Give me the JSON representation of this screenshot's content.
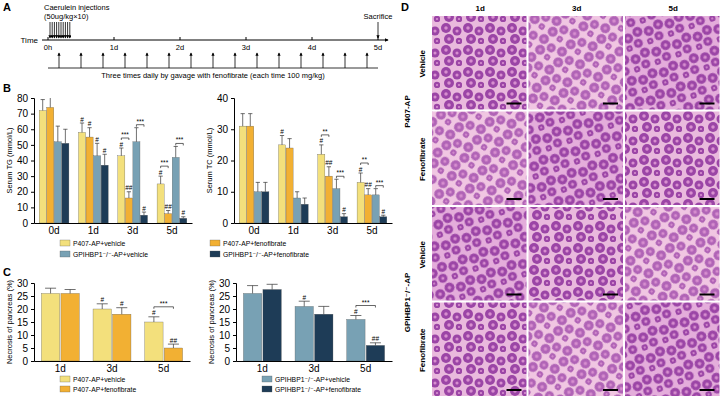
{
  "panel_labels": [
    "A",
    "B",
    "C",
    "D"
  ],
  "timeline": {
    "axis_label": "Time",
    "ticks": [
      "0h",
      "1d",
      "2d",
      "3d",
      "4d",
      "5d"
    ],
    "injection_label": "Caerulein injections",
    "injection_dose": "(50ug/kg×10)",
    "injection_count": 10,
    "end_label": "Sacrifice",
    "gavage_label": "Three times daily by gavage with fenofibrate (each time 100 mg/kg)",
    "gavage_per_day": 3
  },
  "chart_data": [
    {
      "type": "bar",
      "y_label": "Serum TG (mmol/L)",
      "categories": [
        "0d",
        "1d",
        "3d",
        "5d"
      ],
      "series": [
        {
          "name": "P407-AP+vehicle",
          "color": "#f3e07c",
          "values": [
            72,
            58,
            43,
            25
          ],
          "errors": [
            7,
            6,
            5,
            5
          ],
          "marks": [
            null,
            "#",
            "#",
            "#"
          ]
        },
        {
          "name": "P407-AP+fenofibrate",
          "color": "#f2b033",
          "values": [
            74,
            55,
            16,
            6
          ],
          "errors": [
            7,
            6,
            4,
            2
          ],
          "marks": [
            null,
            "#",
            "##",
            "##"
          ]
        },
        {
          "name": "GPIHBP1⁻/⁻-AP+vehicle",
          "color": "#78a1b4",
          "values": [
            52,
            43,
            52,
            42
          ],
          "errors": [
            10,
            8,
            9,
            7
          ],
          "marks": [
            null,
            "#",
            null,
            null
          ]
        },
        {
          "name": "GPIHBP1⁻/⁻-AP+fenofibrate",
          "color": "#1e3c57",
          "values": [
            51,
            37,
            5,
            3
          ],
          "errors": [
            9,
            7,
            2,
            1
          ],
          "marks": [
            null,
            "#",
            "#",
            "#"
          ]
        }
      ],
      "brackets": [
        {
          "text": "***",
          "category": "3d",
          "series": [
            "P407-AP+vehicle",
            "P407-AP+fenofibrate"
          ]
        },
        {
          "text": "***",
          "category": "3d",
          "series": [
            "GPIHBP1⁻/⁻-AP+vehicle",
            "GPIHBP1⁻/⁻-AP+fenofibrate"
          ]
        },
        {
          "text": "***",
          "category": "5d",
          "series": [
            "P407-AP+vehicle",
            "P407-AP+fenofibrate"
          ]
        },
        {
          "text": "***",
          "category": "5d",
          "series": [
            "GPIHBP1⁻/⁻-AP+vehicle",
            "GPIHBP1⁻/⁻-AP+fenofibrate"
          ]
        }
      ],
      "ylim": [
        0,
        80
      ],
      "yticks": [
        0,
        10,
        20,
        30,
        40,
        50,
        60,
        70,
        80
      ],
      "legend": "bottom"
    },
    {
      "type": "bar",
      "y_label": "Serum TC (mmol/L)",
      "categories": [
        "0d",
        "1d",
        "3d",
        "5d"
      ],
      "series": [
        {
          "name": "P407-AP+vehicle",
          "color": "#f3e07c",
          "values": [
            31,
            25,
            22,
            13
          ],
          "errors": [
            4,
            3,
            3,
            3
          ],
          "marks": [
            null,
            "#",
            "#",
            "#"
          ]
        },
        {
          "name": "P407-AP+fenofibrate",
          "color": "#f2b033",
          "values": [
            31,
            24,
            15,
            9
          ],
          "errors": [
            4,
            3,
            3,
            2
          ],
          "marks": [
            null,
            null,
            "##",
            "##"
          ]
        },
        {
          "name": "GPIHBP1⁻/⁻-AP+vehicle",
          "color": "#78a1b4",
          "values": [
            10,
            8,
            11,
            9
          ],
          "errors": [
            3,
            2,
            3,
            2
          ],
          "marks": [
            null,
            null,
            null,
            null
          ]
        },
        {
          "name": "GPIHBP1⁻/⁻-AP+fenofibrate",
          "color": "#1e3c57",
          "values": [
            10,
            6,
            2,
            2
          ],
          "errors": [
            3,
            2,
            1,
            0.5
          ],
          "marks": [
            null,
            null,
            "#",
            "#"
          ]
        }
      ],
      "brackets": [
        {
          "text": "**",
          "category": "3d",
          "series": [
            "P407-AP+vehicle",
            "P407-AP+fenofibrate"
          ]
        },
        {
          "text": "***",
          "category": "3d",
          "series": [
            "GPIHBP1⁻/⁻-AP+vehicle",
            "GPIHBP1⁻/⁻-AP+fenofibrate"
          ]
        },
        {
          "text": "**",
          "category": "5d",
          "series": [
            "P407-AP+vehicle",
            "P407-AP+fenofibrate"
          ]
        },
        {
          "text": "***",
          "category": "5d",
          "series": [
            "GPIHBP1⁻/⁻-AP+vehicle",
            "GPIHBP1⁻/⁻-AP+fenofibrate"
          ]
        }
      ],
      "ylim": [
        0,
        40
      ],
      "yticks": [
        0,
        10,
        20,
        30,
        40
      ]
    },
    {
      "type": "bar",
      "y_label": "Necrosis of pancreas (%)",
      "categories": [
        "1d",
        "3d",
        "5d"
      ],
      "series": [
        {
          "name": "P407-AP+vehicle",
          "color": "#f3e07c",
          "values": [
            26,
            20,
            15
          ],
          "errors": [
            2,
            2,
            2
          ],
          "marks": [
            null,
            "#",
            "#"
          ]
        },
        {
          "name": "P407-AP+fenofibrate",
          "color": "#f2b033",
          "values": [
            26,
            18,
            5
          ],
          "errors": [
            1.5,
            2.5,
            1.5
          ],
          "marks": [
            null,
            "#",
            "##"
          ]
        }
      ],
      "brackets": [
        {
          "text": "***",
          "category": "5d",
          "series": [
            "P407-AP+vehicle",
            "P407-AP+fenofibrate"
          ]
        }
      ],
      "ylim": [
        0,
        30
      ],
      "yticks": [
        0,
        5,
        10,
        15,
        20,
        25,
        30
      ],
      "legend": "bottom"
    },
    {
      "type": "bar",
      "y_label": "Necrosis of pancreas (%)",
      "categories": [
        "1d",
        "3d",
        "5d"
      ],
      "series": [
        {
          "name": "GPIHBP1⁻/⁻-AP+vehicle",
          "color": "#78a1b4",
          "values": [
            26,
            21,
            16
          ],
          "errors": [
            3,
            2,
            1.5
          ],
          "marks": [
            null,
            "#",
            "#"
          ]
        },
        {
          "name": "GPIHBP1⁻/⁻-AP+fenofibrate",
          "color": "#1e3c57",
          "values": [
            27.5,
            18,
            6
          ],
          "errors": [
            2,
            3,
            1
          ],
          "marks": [
            null,
            null,
            "##"
          ]
        }
      ],
      "brackets": [
        {
          "text": "***",
          "category": "5d",
          "series": [
            "GPIHBP1⁻/⁻-AP+vehicle",
            "GPIHBP1⁻/⁻-AP+fenofibrate"
          ]
        }
      ],
      "ylim": [
        0,
        30
      ],
      "yticks": [
        0,
        5,
        10,
        15,
        20,
        25,
        30
      ],
      "legend": "bottom"
    }
  ],
  "histology": {
    "columns": [
      "1d",
      "3d",
      "5d"
    ],
    "groups": [
      {
        "name": "P407-AP",
        "rows": [
          "Vehicle",
          "Fenofibrate"
        ]
      },
      {
        "name": "GPIHBP1⁻/⁻-AP",
        "rows": [
          "Vehicle",
          "Fenofibrate"
        ]
      }
    ]
  }
}
